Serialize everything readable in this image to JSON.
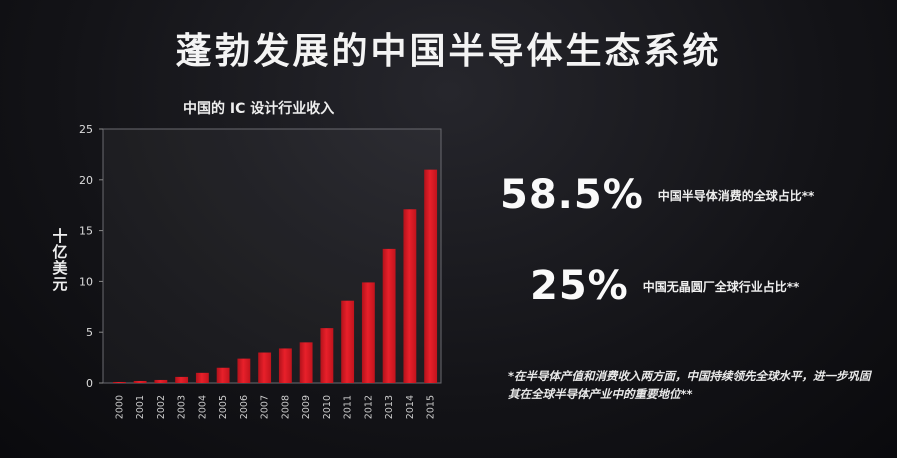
{
  "slide": {
    "title": "蓬勃发展的中国半导体生态系统"
  },
  "stats": [
    {
      "value": "58.5%",
      "label": "中国半导体消费的全球占比**"
    },
    {
      "value": "25%",
      "label": "中国无晶圆厂全球行业占比**"
    }
  ],
  "footnote": "*在半导体产值和消费收入两方面，中国持续领先全球水平，进一步巩固其在全球半导体产业中的重要地位**",
  "chart_data": {
    "type": "bar",
    "title": "中国的 IC 设计行业收入",
    "xlabel": "",
    "ylabel": "十亿美元",
    "categories": [
      "2000",
      "2001",
      "2002",
      "2003",
      "2004",
      "2005",
      "2006",
      "2007",
      "2008",
      "2009",
      "2010",
      "2011",
      "2012",
      "2013",
      "2014",
      "2015"
    ],
    "values": [
      0.1,
      0.2,
      0.3,
      0.6,
      1.0,
      1.5,
      2.4,
      3.0,
      3.4,
      4.0,
      5.4,
      8.1,
      9.9,
      13.2,
      17.1,
      21.0
    ],
    "yticks": [
      0,
      5,
      10,
      15,
      20,
      25
    ],
    "ylim": [
      0,
      25
    ],
    "bar_color": "#e8202a",
    "grid": false
  }
}
